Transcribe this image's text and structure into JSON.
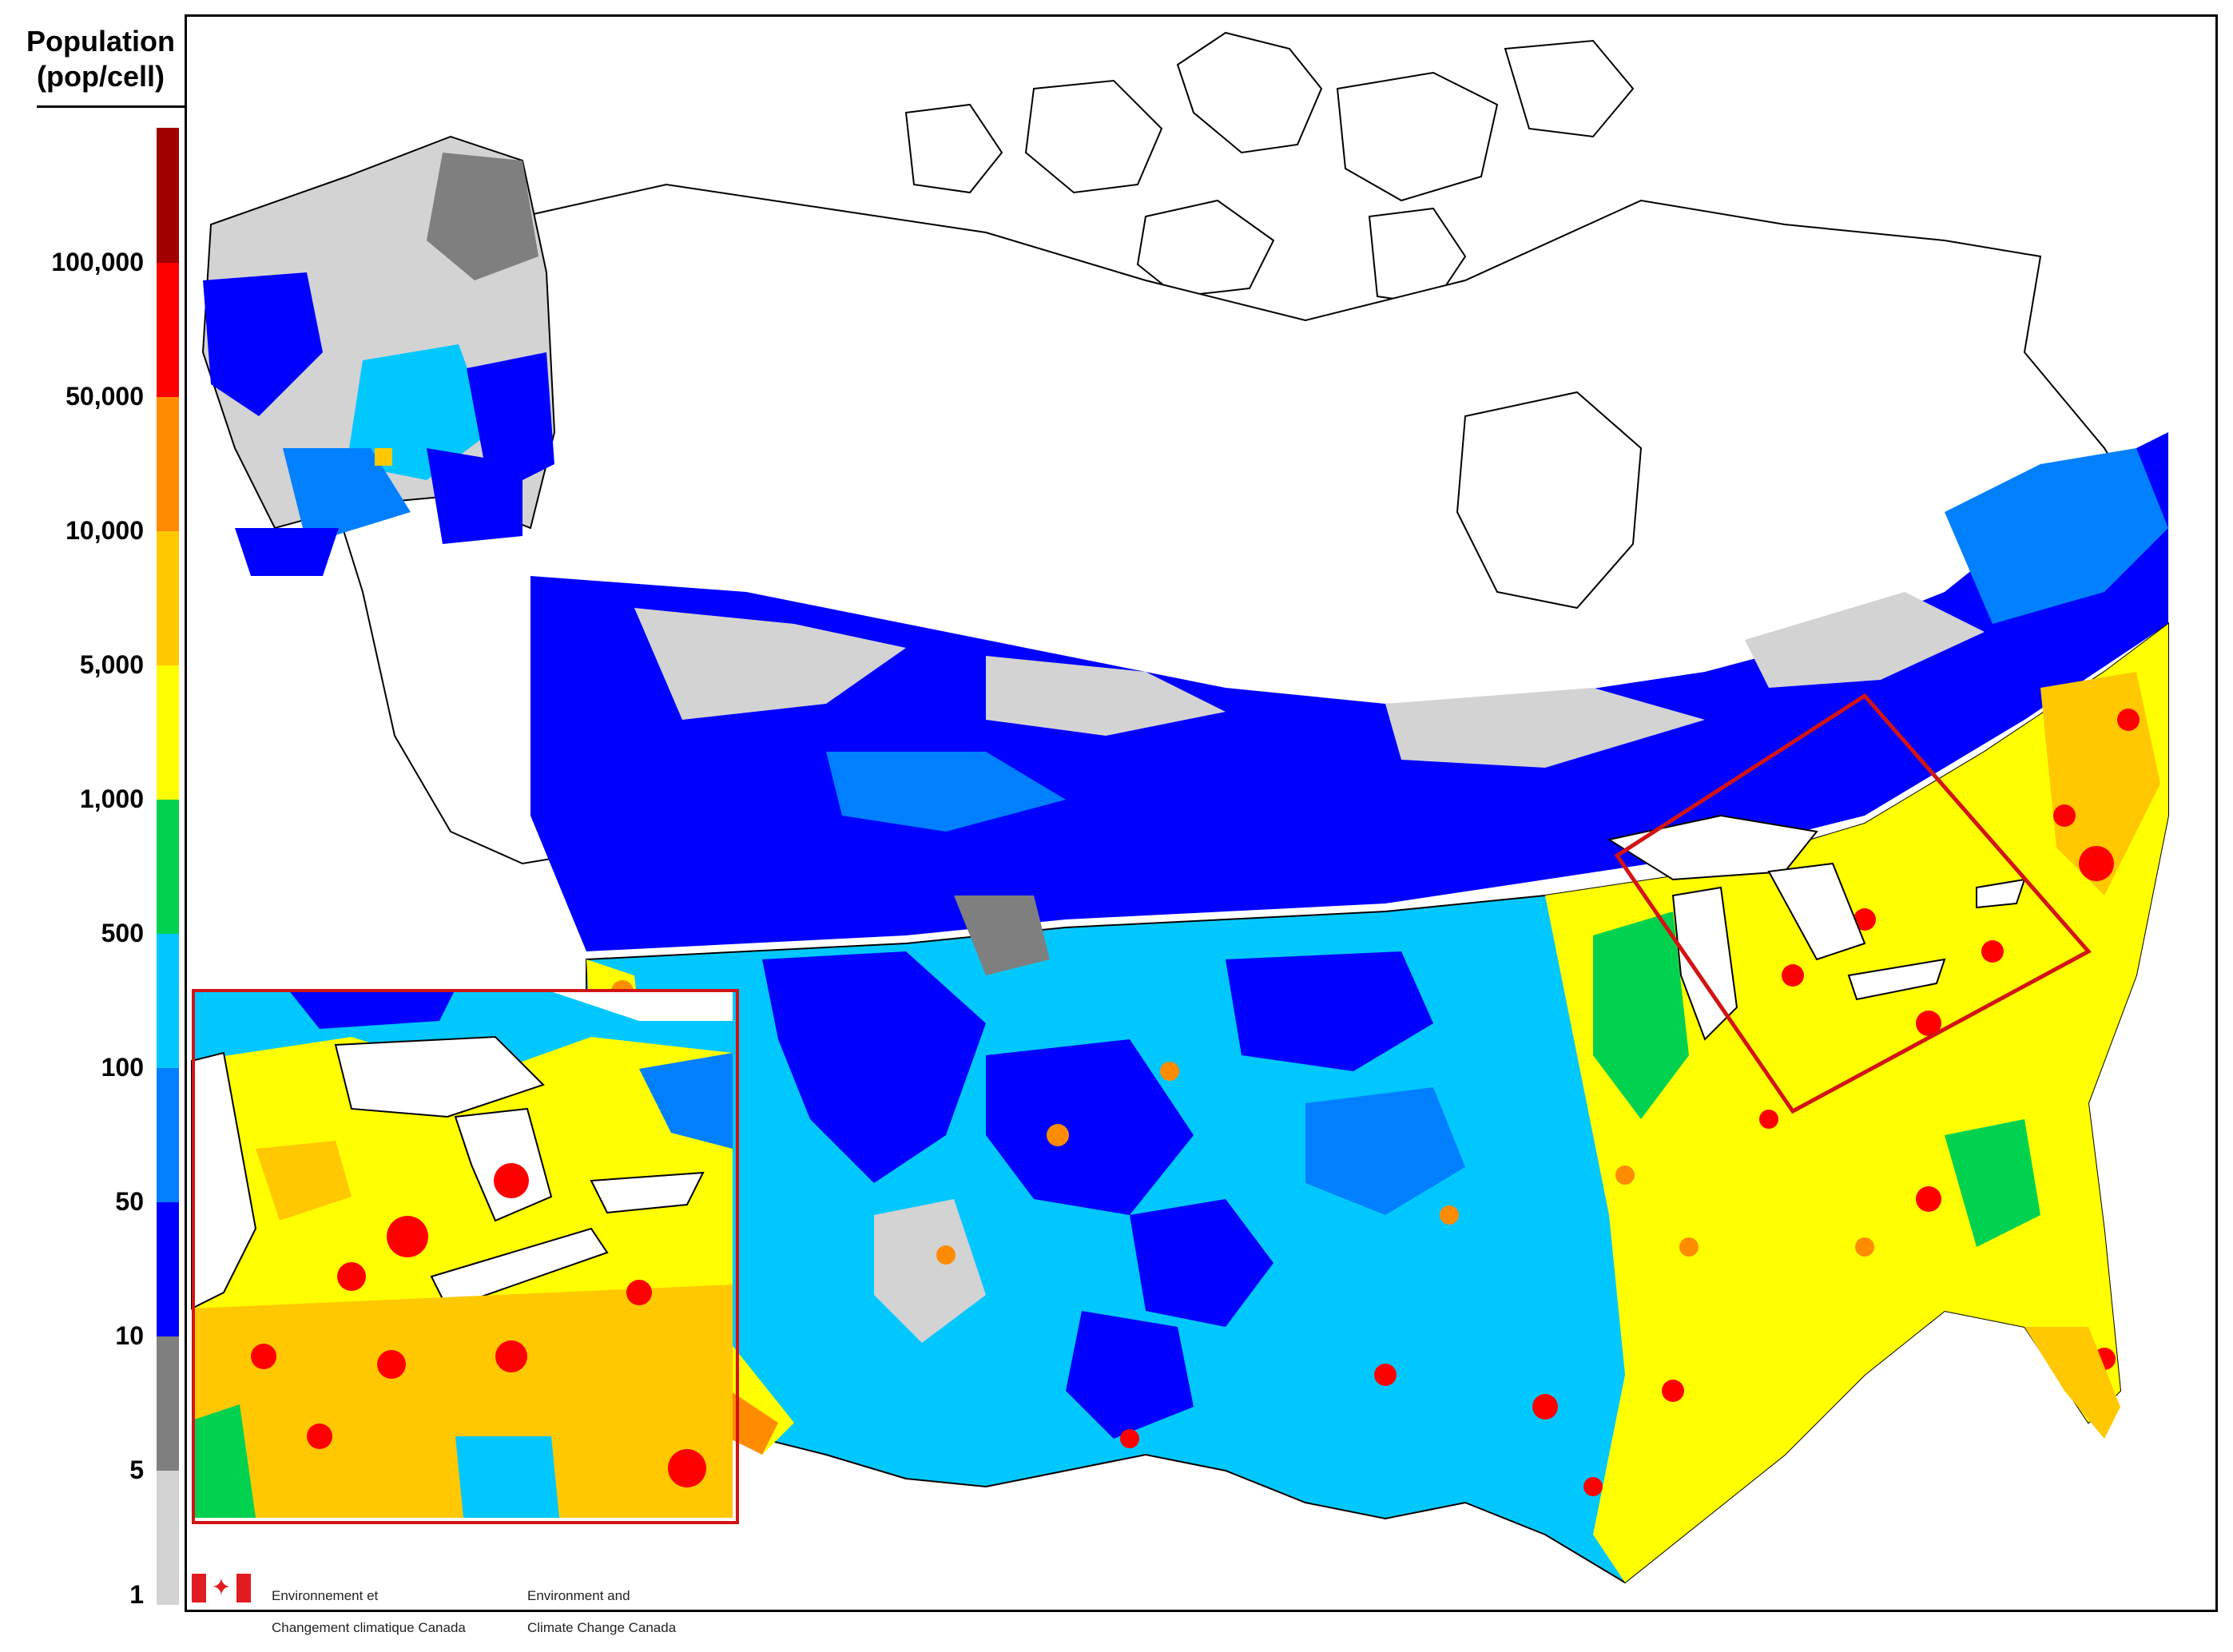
{
  "legend": {
    "title_line1": "Population",
    "title_line2": "(pop/cell)",
    "colors": [
      "#d3d3d3",
      "#7f7f7f",
      "#0000ff",
      "#0080ff",
      "#00c8ff",
      "#00d250",
      "#ffff00",
      "#ffc800",
      "#ff8c00",
      "#ff0000",
      "#a00000"
    ],
    "ticks": [
      "100,000",
      "50,000",
      "10,000",
      "5,000",
      "1,000",
      "500",
      "100",
      "50",
      "10",
      "5",
      "1"
    ]
  },
  "map": {
    "inset_frame_color": "#d21414",
    "highlight_box_color": "#d21414"
  },
  "logo": {
    "fr_line1": "Environnement et",
    "fr_line2": "Changement climatique Canada",
    "en_line1": "Environment and",
    "en_line2": "Climate Change Canada",
    "flag_colors": [
      "#e21b22",
      "#ffffff"
    ]
  }
}
